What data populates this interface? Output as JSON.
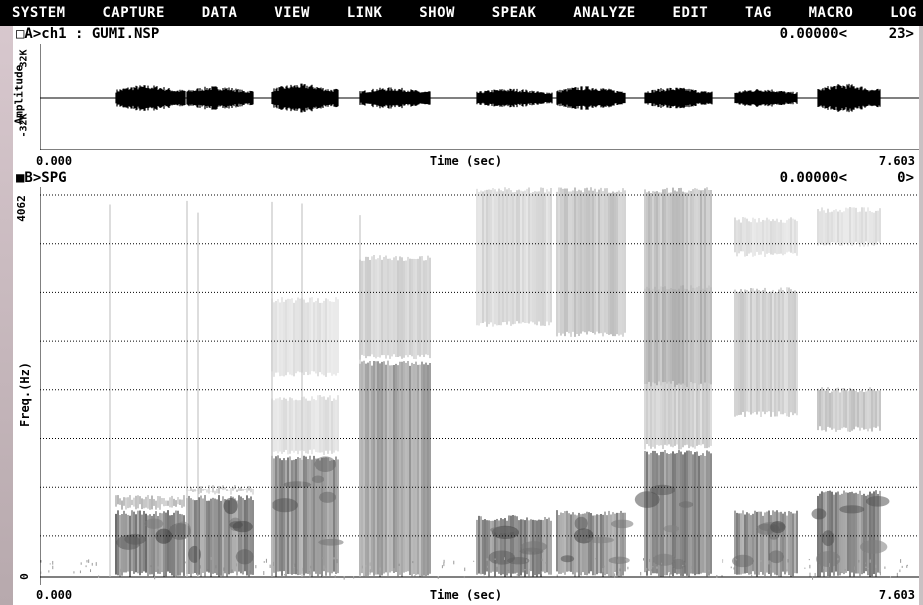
{
  "menu": [
    "SYSTEM",
    "CAPTURE",
    "DATA",
    "VIEW",
    "LINK",
    "SHOW",
    "SPEAK",
    "ANALYZE",
    "EDIT",
    "TAG",
    "MACRO",
    "LOG"
  ],
  "panelA": {
    "title": "□A>ch1 : GUMI.NSP",
    "cursor": "0.00000<",
    "marker": "23>",
    "ylabel": "Amplitude",
    "ytick_top": "32K",
    "ytick_bottom": "-32K",
    "x_start": "0.000",
    "x_end": "7.603",
    "xlabel": "Time (sec)"
  },
  "panelB": {
    "title": "■B>SPG",
    "cursor": "0.00000<",
    "marker": "0>",
    "ylabel": "Freq.(Hz)",
    "ytick_top": "4062",
    "ytick_bottom": "0",
    "x_start": "0.000",
    "x_end": "7.603",
    "xlabel": "Time (sec)"
  },
  "colors": {
    "menubar_bg": "#000000",
    "menu_text": "#ffffff",
    "panel_bg": "#ffffff",
    "grid": "#000000"
  }
}
